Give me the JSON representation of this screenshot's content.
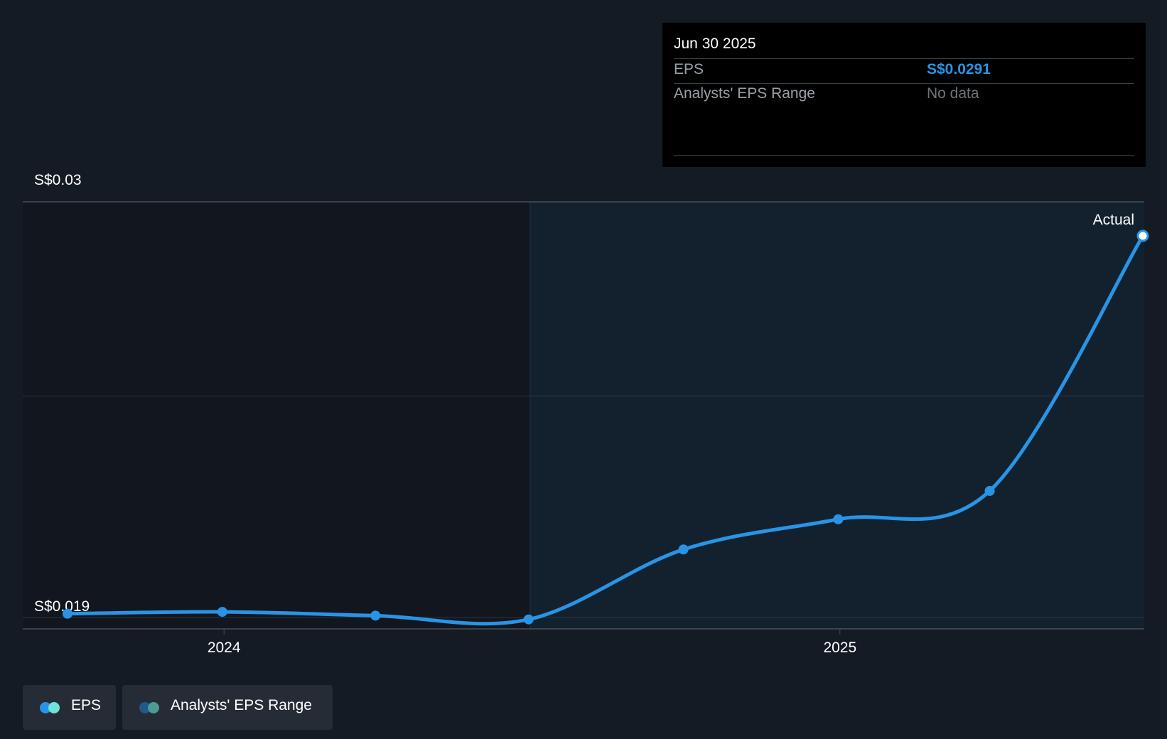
{
  "chart_data": {
    "type": "line",
    "x": [
      "2023-09-30",
      "2023-12-31",
      "2024-03-31",
      "2024-06-30",
      "2024-09-30",
      "2024-12-31",
      "2025-03-31",
      "2025-06-30"
    ],
    "series": [
      {
        "name": "EPS",
        "values": [
          0.0191,
          0.01915,
          0.01905,
          0.01895,
          0.0208,
          0.0216,
          0.02235,
          0.0291
        ]
      }
    ],
    "ylim": [
      0.0187,
      0.03
    ],
    "y_tick_labels": [
      "S$0.03",
      "S$0.019"
    ],
    "x_tick_labels": [
      "2024",
      "2025"
    ],
    "grid": true,
    "forecast_region_start": "2024-06-30",
    "annotation": "Actual",
    "line_color": "#2994e6"
  },
  "tooltip": {
    "date": "Jun 30 2025",
    "rows": [
      {
        "label": "EPS",
        "value": "S$0.0291"
      },
      {
        "label": "Analysts' EPS Range",
        "value": "No data"
      }
    ]
  },
  "legend": [
    {
      "label": "EPS",
      "icon": "eps-dots-icon",
      "colors": [
        "#2994e6",
        "#6fe3d6"
      ]
    },
    {
      "label": "Analysts' EPS Range",
      "icon": "range-dots-icon",
      "colors": [
        "#1f5a8a",
        "#4e9a94"
      ]
    }
  ]
}
